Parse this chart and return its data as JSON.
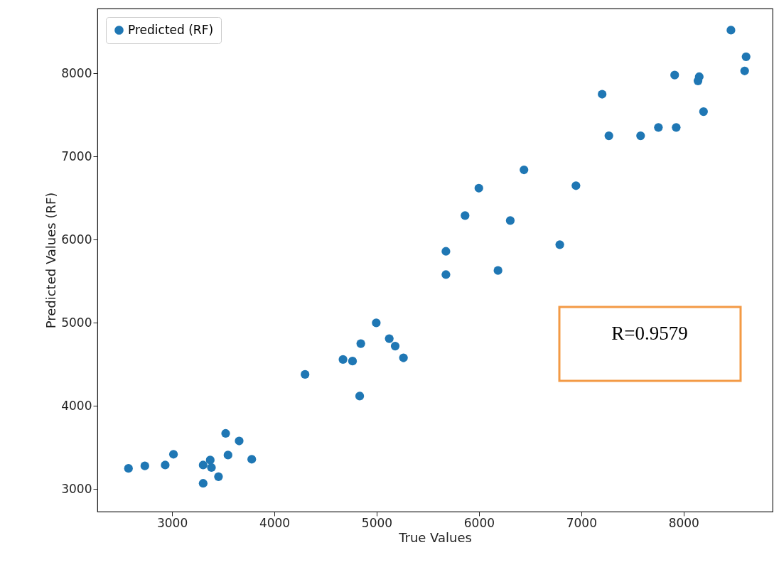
{
  "chart_data": {
    "type": "scatter",
    "xlabel": "True Values",
    "ylabel": "Predicted Values (RF)",
    "x": [
      2574,
      2734,
      2933,
      3014,
      3304,
      3373,
      3385,
      3454,
      3304,
      3524,
      3656,
      3547,
      3779,
      4300,
      4671,
      4764,
      4845,
      4834,
      4996,
      5123,
      5181,
      5262,
      8463,
      8611,
      8597,
      7913,
      8153,
      8141,
      7204,
      8195,
      7754,
      7928,
      7270,
      7580,
      6440,
      6948,
      5999,
      5864,
      6306,
      5677,
      6790,
      5677,
      6186
    ],
    "series": [
      {
        "name": "Predicted (RF)",
        "color": "#1f77b4",
        "values": [
          3250,
          3280,
          3290,
          3420,
          3290,
          3350,
          3260,
          3150,
          3070,
          3670,
          3580,
          3410,
          3360,
          4380,
          4560,
          4540,
          4750,
          4120,
          5000,
          4810,
          4720,
          4580,
          8520,
          8200,
          8030,
          7980,
          7960,
          7910,
          7750,
          7540,
          7350,
          7350,
          7250,
          7250,
          6840,
          6650,
          6620,
          6290,
          6230,
          5860,
          5940,
          5580,
          5630
        ]
      }
    ],
    "xlim": [
      2270,
      8870
    ],
    "ylim": [
      2730,
      8780
    ],
    "xticks": [
      3000,
      4000,
      5000,
      6000,
      7000,
      8000
    ],
    "yticks": [
      3000,
      4000,
      5000,
      6000,
      7000,
      8000
    ],
    "grid": false,
    "legend": "top left",
    "marker": "circle",
    "annotations": [
      "R=0.9579"
    ]
  }
}
